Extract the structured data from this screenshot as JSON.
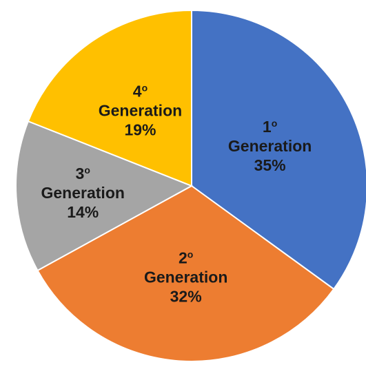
{
  "chart_data": {
    "type": "pie",
    "title": "",
    "legend": "none",
    "categories": [
      "1º Generation",
      "2º Generation",
      "3º Generation",
      "4º Generation"
    ],
    "values": [
      35,
      32,
      14,
      19
    ],
    "colors": [
      "#4472C4",
      "#ED7D31",
      "#A5A5A5",
      "#FFC000"
    ],
    "slices": [
      {
        "ordinal": "1",
        "sup": "o",
        "name": "Generation",
        "pct_label": "35%",
        "value": 35,
        "color": "#4472C4"
      },
      {
        "ordinal": "2",
        "sup": "o",
        "name": "Generation",
        "pct_label": "32%",
        "value": 32,
        "color": "#ED7D31"
      },
      {
        "ordinal": "3",
        "sup": "o",
        "name": "Generation",
        "pct_label": "14%",
        "value": 14,
        "color": "#A5A5A5"
      },
      {
        "ordinal": "4",
        "sup": "o",
        "name": "Generation",
        "pct_label": "19%",
        "value": 19,
        "color": "#FFC000"
      }
    ]
  }
}
